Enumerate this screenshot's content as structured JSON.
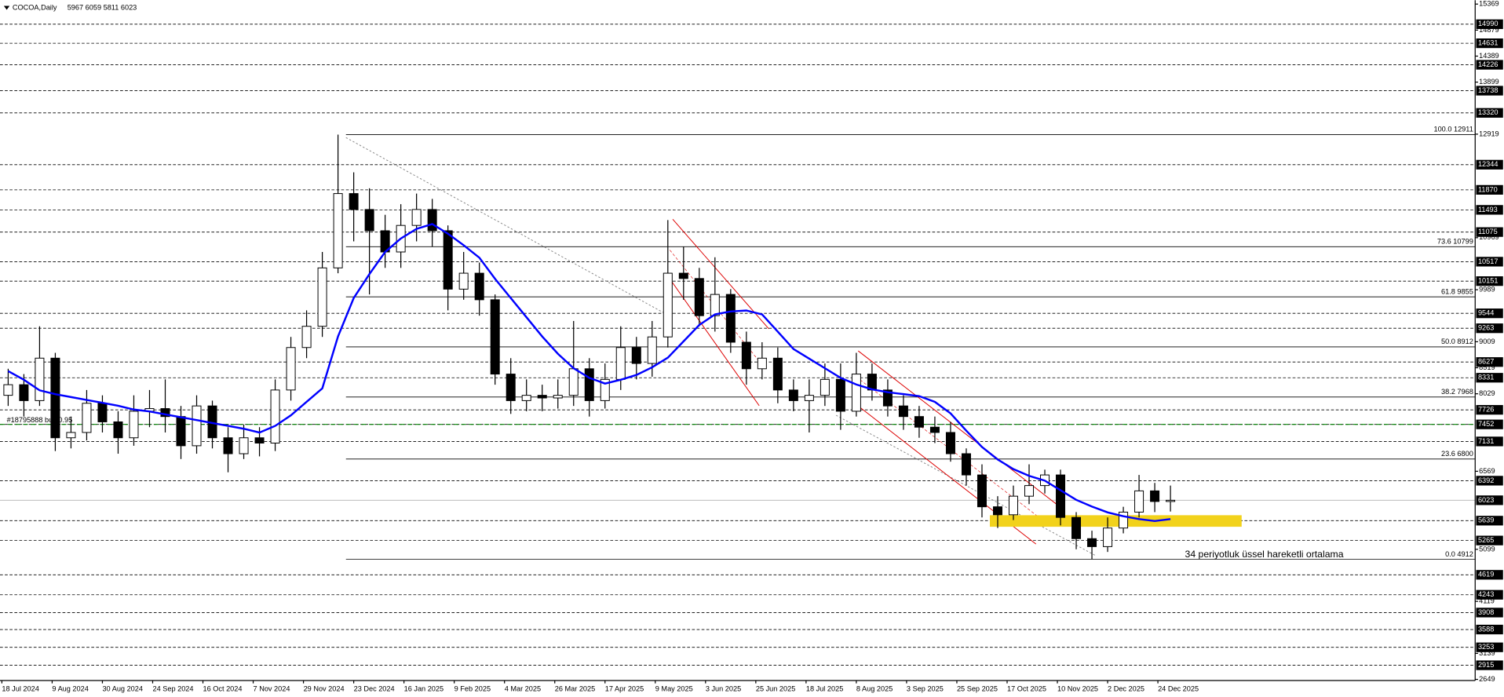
{
  "chart_data": {
    "type": "candlestick",
    "title": "COCOA,Daily",
    "ohlc_text": "5967 6059 5811 6023",
    "xlim": [
      -0.6,
      469
    ],
    "ylim": [
      2628,
      15443
    ],
    "xticks": [
      {
        "value": 0,
        "label": "18 Jul 2024"
      },
      {
        "value": 16,
        "label": "9 Aug 2024"
      },
      {
        "value": 32,
        "label": "30 Aug 2024"
      },
      {
        "value": 48,
        "label": "24 Sep 2024"
      },
      {
        "value": 64,
        "label": "16 Oct 2024"
      },
      {
        "value": 80,
        "label": "7 Nov 2024"
      },
      {
        "value": 96,
        "label": "29 Nov 2024"
      },
      {
        "value": 112,
        "label": "23 Dec 2024"
      },
      {
        "value": 128,
        "label": "16 Jan 2025"
      },
      {
        "value": 144,
        "label": "9 Feb 2025"
      },
      {
        "value": 160,
        "label": "4 Mar 2025"
      },
      {
        "value": 176,
        "label": "26 Mar 2025"
      },
      {
        "value": 192,
        "label": "17 Apr 2025"
      },
      {
        "value": 208,
        "label": "9 May 2025"
      },
      {
        "value": 224,
        "label": "3 Jun 2025"
      },
      {
        "value": 240,
        "label": "25 Jun 2025"
      },
      {
        "value": 256,
        "label": "18 Jul 2025"
      },
      {
        "value": 272,
        "label": "8 Aug 2025"
      },
      {
        "value": 288,
        "label": "3 Sep 2025"
      },
      {
        "value": 304,
        "label": "25 Sep 2025"
      },
      {
        "value": 320,
        "label": "17 Oct 2025"
      },
      {
        "value": 336,
        "label": "10 Nov 2025"
      },
      {
        "value": 352,
        "label": "2 Dec 2025"
      },
      {
        "value": 368,
        "label": "24 Dec 2025"
      }
    ],
    "yticks": [
      15369,
      14879,
      14389,
      13899,
      12919,
      10969,
      9989,
      9009,
      8519,
      8029,
      6569,
      5099,
      4119,
      3139,
      2649
    ],
    "x": [
      2,
      7,
      12,
      17,
      22,
      27,
      32,
      37,
      42,
      47,
      52,
      57,
      62,
      67,
      72,
      77,
      82,
      87,
      92,
      97,
      102,
      107,
      112,
      117,
      122,
      127,
      132,
      137,
      142,
      147,
      152,
      157,
      162,
      167,
      172,
      177,
      182,
      187,
      192,
      197,
      202,
      207,
      212,
      217,
      222,
      227,
      232,
      237,
      242,
      247,
      252,
      257,
      262,
      267,
      272,
      277,
      282,
      287,
      292,
      297,
      302,
      307,
      312,
      317,
      322,
      327,
      332,
      337,
      342,
      347,
      352,
      357,
      362,
      367,
      372
    ],
    "open": [
      8000,
      8200,
      7900,
      8700,
      7200,
      7300,
      7850,
      7500,
      7200,
      7700,
      7750,
      7600,
      7050,
      7800,
      7200,
      6900,
      7200,
      7100,
      8100,
      8900,
      9300,
      10400,
      11800,
      11500,
      11100,
      10700,
      11200,
      11500,
      11100,
      10000,
      10300,
      9800,
      8400,
      7900,
      8000,
      7950,
      8000,
      8500,
      7900,
      8300,
      8900,
      8600,
      9100,
      10300,
      10200,
      9500,
      9900,
      9000,
      8500,
      8700,
      8100,
      7900,
      8000,
      8300,
      7700,
      8400,
      8100,
      7800,
      7600,
      7400,
      7300,
      6900,
      6500,
      5900,
      5750,
      6100,
      6300,
      6500,
      5700,
      5300,
      5150,
      5500,
      5800,
      6200,
      6000
    ],
    "high": [
      8500,
      8400,
      9300,
      8800,
      7600,
      8100,
      8000,
      7700,
      8000,
      8100,
      8300,
      7800,
      8000,
      7900,
      7400,
      7450,
      7400,
      8300,
      9100,
      9600,
      10700,
      12911,
      12200,
      11900,
      11400,
      11600,
      11800,
      11700,
      11200,
      10700,
      10500,
      9900,
      8700,
      8300,
      8200,
      8300,
      9400,
      8700,
      8600,
      9300,
      9100,
      9400,
      11300,
      10800,
      10400,
      10600,
      10000,
      9200,
      9000,
      8900,
      8300,
      8300,
      8600,
      8600,
      8800,
      8600,
      8300,
      8000,
      7800,
      7600,
      7500,
      7000,
      6700,
      6100,
      6300,
      6700,
      6600,
      6600,
      5800,
      5450,
      5700,
      5900,
      6500,
      6350,
      6300
    ],
    "low": [
      7800,
      7600,
      7800,
      6950,
      7000,
      7150,
      7300,
      6900,
      7050,
      7400,
      7300,
      6800,
      6900,
      7000,
      6550,
      6800,
      6850,
      6950,
      7900,
      8700,
      9100,
      10300,
      10900,
      9900,
      10400,
      10400,
      10900,
      10800,
      9600,
      9800,
      9500,
      8200,
      7650,
      7700,
      7700,
      7750,
      7800,
      7600,
      7750,
      8100,
      8300,
      8350,
      8900,
      9800,
      9300,
      9200,
      8800,
      8200,
      8300,
      7850,
      7700,
      7300,
      7800,
      7350,
      7600,
      7900,
      7600,
      7350,
      7200,
      7100,
      6750,
      6300,
      5700,
      5500,
      5650,
      5950,
      6150,
      5550,
      5100,
      4912,
      5050,
      5400,
      5700,
      5800,
      5811
    ],
    "close": [
      8200,
      7900,
      8700,
      7200,
      7300,
      7850,
      7500,
      7200,
      7700,
      7750,
      7600,
      7050,
      7800,
      7200,
      6900,
      7200,
      7100,
      8100,
      8900,
      9300,
      10400,
      11800,
      11500,
      11100,
      10700,
      11200,
      11500,
      11100,
      10000,
      10300,
      9800,
      8400,
      7900,
      8000,
      7950,
      8000,
      8500,
      7900,
      8300,
      8900,
      8600,
      9100,
      10300,
      10200,
      9500,
      9900,
      9000,
      8500,
      8700,
      8100,
      7900,
      8000,
      8300,
      7700,
      8400,
      8100,
      7800,
      7600,
      7400,
      7300,
      6900,
      6500,
      5900,
      5750,
      6100,
      6300,
      6500,
      5700,
      5300,
      5150,
      5500,
      5800,
      6200,
      6000,
      6023
    ],
    "candle_color": "#000000",
    "ma": {
      "name": "34 periyotluk üssel hareketli ortalama",
      "color": "#0000ff",
      "values": [
        8455,
        8293,
        8094,
        8022,
        7967,
        7913,
        7859,
        7804,
        7732,
        7696,
        7641,
        7587,
        7533,
        7478,
        7424,
        7370,
        7298,
        7424,
        7623,
        7877,
        8130,
        9108,
        9832,
        10284,
        10700,
        10954,
        11135,
        11225,
        11044,
        10827,
        10592,
        10194,
        9832,
        9470,
        9108,
        8782,
        8510,
        8329,
        8221,
        8293,
        8383,
        8528,
        8709,
        9017,
        9325,
        9524,
        9579,
        9597,
        9524,
        9198,
        8872,
        8691,
        8510,
        8329,
        8203,
        8112,
        8058,
        8022,
        7985,
        7877,
        7660,
        7334,
        7026,
        6791,
        6610,
        6483,
        6393,
        6212,
        6031,
        5904,
        5795,
        5723,
        5669,
        5632,
        5669
      ]
    },
    "levels": [
      14990,
      14631,
      14226,
      13738,
      13320,
      12344,
      11870,
      11493,
      11075,
      10517,
      10151,
      9544,
      9263,
      8627,
      8331,
      7726,
      7452,
      7131,
      6392,
      5639,
      5265,
      4619,
      4243,
      3908,
      3588,
      3253,
      2915
    ],
    "last_price": 6023,
    "fib": [
      {
        "value": 12911,
        "label": "100.0 12911"
      },
      {
        "value": 10799,
        "label": "73.6 10799"
      },
      {
        "value": 9855,
        "label": "61.8 9855"
      },
      {
        "value": 8912,
        "label": "50.0 8912"
      },
      {
        "value": 7968,
        "label": "38.2 7968"
      },
      {
        "value": 6800,
        "label": "23.6 6800"
      },
      {
        "value": 4912,
        "label": "0.0 4912"
      }
    ],
    "order": {
      "value": 7452,
      "label": "#18795888 buy 0.95"
    }
  }
}
